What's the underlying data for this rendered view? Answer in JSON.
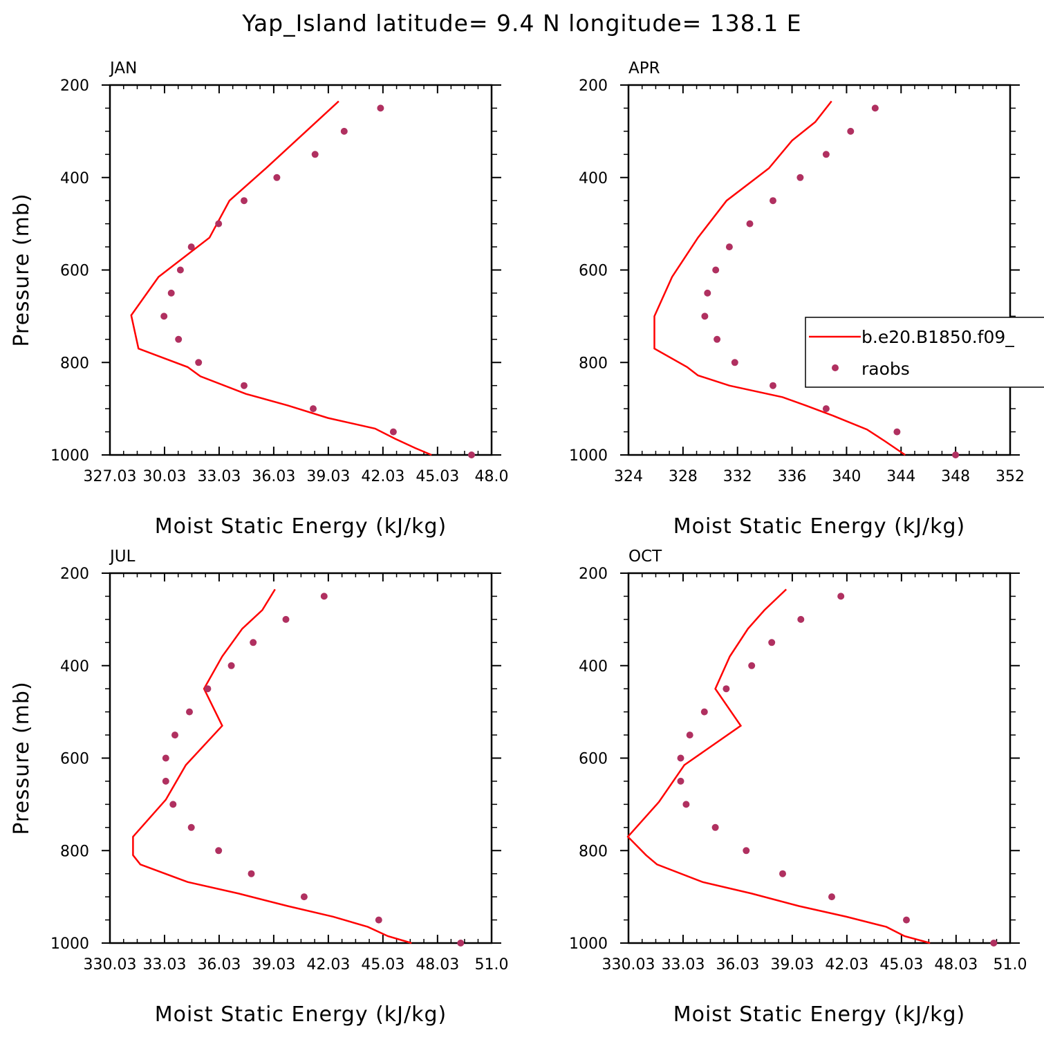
{
  "figure": {
    "title": "Yap_Island  latitude= 9.4 N longitude= 138.1 E"
  },
  "legend": {
    "model_label": "b.e20.B1850.f09_",
    "obs_label": "raobs",
    "model_color": "#ff0000",
    "obs_color": "#b03060"
  },
  "chart_data": [
    {
      "type": "line",
      "title": "JAN",
      "xlabel": "Moist Static Energy (kJ/kg)",
      "ylabel": "Pressure (mb)",
      "xlim": [
        327.03,
        348.0
      ],
      "ylim": [
        1000,
        200
      ],
      "x_ticks": [
        327.03,
        330.03,
        333.03,
        336.03,
        339.03,
        342.03,
        345.03,
        348.0
      ],
      "x_tick_labels": [
        "327.03",
        "30.03",
        "33.03",
        "36.03",
        "39.03",
        "42.03",
        "45.03",
        "48.0"
      ],
      "y_ticks": [
        200,
        400,
        600,
        800,
        1000
      ],
      "y_tick_labels": [
        "200",
        "400",
        "600",
        "800",
        "1000"
      ],
      "series": [
        {
          "name": "b.e20.B1850.f09_",
          "kind": "line",
          "points": [
            [
              344.7,
              1000
            ],
            [
              343.8,
              985
            ],
            [
              342.7,
              965
            ],
            [
              341.6,
              943
            ],
            [
              339.0,
              920
            ],
            [
              336.8,
              893
            ],
            [
              334.5,
              868
            ],
            [
              332.0,
              830
            ],
            [
              331.3,
              810
            ],
            [
              328.6,
              770
            ],
            [
              328.2,
              698
            ],
            [
              329.7,
              615
            ],
            [
              332.5,
              530
            ],
            [
              333.6,
              450
            ],
            [
              335.6,
              380
            ],
            [
              339.6,
              235
            ]
          ]
        },
        {
          "name": "raobs",
          "kind": "scatter",
          "points": [
            [
              346.9,
              1000
            ],
            [
              342.6,
              950
            ],
            [
              338.2,
              900
            ],
            [
              334.4,
              850
            ],
            [
              331.9,
              800
            ],
            [
              330.8,
              750
            ],
            [
              330.0,
              700
            ],
            [
              330.4,
              650
            ],
            [
              330.9,
              600
            ],
            [
              331.5,
              550
            ],
            [
              333.0,
              500
            ],
            [
              334.4,
              450
            ],
            [
              336.2,
              400
            ],
            [
              338.3,
              350
            ],
            [
              339.9,
              300
            ],
            [
              341.9,
              250
            ]
          ]
        }
      ]
    },
    {
      "type": "line",
      "title": "APR",
      "xlabel": "Moist Static Energy (kJ/kg)",
      "ylabel": "",
      "xlim": [
        324,
        352
      ],
      "ylim": [
        1000,
        200
      ],
      "x_ticks": [
        324,
        328,
        332,
        336,
        340,
        344,
        348,
        352
      ],
      "x_tick_labels": [
        "324",
        "328",
        "332",
        "336",
        "340",
        "344",
        "348",
        "352"
      ],
      "y_ticks": [
        200,
        400,
        600,
        800,
        1000
      ],
      "y_tick_labels": [
        "200",
        "400",
        "600",
        "800",
        "1000"
      ],
      "series": [
        {
          "name": "b.e20.B1850.f09_",
          "kind": "line",
          "points": [
            [
              344.3,
              1000
            ],
            [
              342.8,
              970
            ],
            [
              341.5,
              945
            ],
            [
              339.0,
              915
            ],
            [
              337.0,
              893
            ],
            [
              335.3,
              875
            ],
            [
              331.4,
              850
            ],
            [
              329.1,
              828
            ],
            [
              328.3,
              810
            ],
            [
              325.9,
              770
            ],
            [
              325.9,
              700
            ],
            [
              327.2,
              615
            ],
            [
              329.1,
              530
            ],
            [
              331.2,
              450
            ],
            [
              334.3,
              380
            ],
            [
              336.0,
              320
            ],
            [
              337.7,
              280
            ],
            [
              338.9,
              235
            ]
          ]
        },
        {
          "name": "raobs",
          "kind": "scatter",
          "points": [
            [
              348.0,
              1000
            ],
            [
              343.7,
              950
            ],
            [
              338.5,
              900
            ],
            [
              334.6,
              850
            ],
            [
              331.8,
              800
            ],
            [
              330.5,
              750
            ],
            [
              329.6,
              700
            ],
            [
              329.8,
              650
            ],
            [
              330.4,
              600
            ],
            [
              331.4,
              550
            ],
            [
              332.9,
              500
            ],
            [
              334.6,
              450
            ],
            [
              336.6,
              400
            ],
            [
              338.5,
              350
            ],
            [
              340.3,
              300
            ],
            [
              342.1,
              250
            ]
          ]
        }
      ]
    },
    {
      "type": "line",
      "title": "JUL",
      "xlabel": "Moist Static Energy (kJ/kg)",
      "ylabel": "Pressure (mb)",
      "xlim": [
        330.03,
        351.0
      ],
      "ylim": [
        1000,
        200
      ],
      "x_ticks": [
        330.03,
        333.03,
        336.03,
        339.03,
        342.03,
        345.03,
        348.03,
        351.0
      ],
      "x_tick_labels": [
        "330.03",
        "33.03",
        "36.03",
        "39.03",
        "42.03",
        "45.03",
        "48.03",
        "51.0"
      ],
      "y_ticks": [
        200,
        400,
        600,
        800,
        1000
      ],
      "y_tick_labels": [
        "200",
        "400",
        "600",
        "800",
        "1000"
      ],
      "series": [
        {
          "name": "b.e20.B1850.f09_",
          "kind": "line",
          "points": [
            [
              346.6,
              1000
            ],
            [
              345.3,
              985
            ],
            [
              344.2,
              965
            ],
            [
              342.3,
              943
            ],
            [
              339.8,
              920
            ],
            [
              337.1,
              893
            ],
            [
              334.3,
              868
            ],
            [
              331.7,
              830
            ],
            [
              331.3,
              810
            ],
            [
              331.3,
              770
            ],
            [
              333.1,
              690
            ],
            [
              334.2,
              615
            ],
            [
              336.2,
              530
            ],
            [
              335.2,
              450
            ],
            [
              336.2,
              380
            ],
            [
              337.3,
              320
            ],
            [
              338.4,
              280
            ],
            [
              339.1,
              235
            ]
          ]
        },
        {
          "name": "raobs",
          "kind": "scatter",
          "points": [
            [
              349.3,
              1000
            ],
            [
              344.8,
              950
            ],
            [
              340.7,
              900
            ],
            [
              337.8,
              850
            ],
            [
              336.0,
              800
            ],
            [
              334.5,
              750
            ],
            [
              333.5,
              700
            ],
            [
              333.1,
              650
            ],
            [
              333.1,
              600
            ],
            [
              333.6,
              550
            ],
            [
              334.4,
              500
            ],
            [
              335.4,
              450
            ],
            [
              336.7,
              400
            ],
            [
              337.9,
              350
            ],
            [
              339.7,
              300
            ],
            [
              341.8,
              250
            ]
          ]
        }
      ]
    },
    {
      "type": "line",
      "title": "OCT",
      "xlabel": "Moist Static Energy (kJ/kg)",
      "ylabel": "",
      "xlim": [
        330.03,
        351.0
      ],
      "ylim": [
        1000,
        200
      ],
      "x_ticks": [
        330.03,
        333.03,
        336.03,
        339.03,
        342.03,
        345.03,
        348.03,
        351.0
      ],
      "x_tick_labels": [
        "330.03",
        "33.03",
        "36.03",
        "39.03",
        "42.03",
        "45.03",
        "48.03",
        "51.0"
      ],
      "y_ticks": [
        200,
        400,
        600,
        800,
        1000
      ],
      "y_tick_labels": [
        "200",
        "400",
        "600",
        "800",
        "1000"
      ],
      "series": [
        {
          "name": "b.e20.B1850.f09_",
          "kind": "line",
          "points": [
            [
              346.6,
              1000
            ],
            [
              345.2,
              985
            ],
            [
              344.2,
              965
            ],
            [
              342.0,
              943
            ],
            [
              339.4,
              920
            ],
            [
              336.8,
              893
            ],
            [
              334.1,
              868
            ],
            [
              331.6,
              830
            ],
            [
              331.0,
              810
            ],
            [
              330.0,
              770
            ],
            [
              331.7,
              695
            ],
            [
              333.1,
              615
            ],
            [
              336.2,
              530
            ],
            [
              334.8,
              450
            ],
            [
              335.6,
              380
            ],
            [
              336.6,
              320
            ],
            [
              337.5,
              280
            ],
            [
              338.7,
              235
            ]
          ]
        },
        {
          "name": "raobs",
          "kind": "scatter",
          "points": [
            [
              350.1,
              1000
            ],
            [
              345.3,
              950
            ],
            [
              341.2,
              900
            ],
            [
              338.5,
              850
            ],
            [
              336.5,
              800
            ],
            [
              334.8,
              750
            ],
            [
              333.2,
              700
            ],
            [
              332.9,
              650
            ],
            [
              332.9,
              600
            ],
            [
              333.4,
              550
            ],
            [
              334.2,
              500
            ],
            [
              335.4,
              450
            ],
            [
              336.8,
              400
            ],
            [
              337.9,
              350
            ],
            [
              339.5,
              300
            ],
            [
              341.7,
              250
            ]
          ]
        }
      ]
    }
  ]
}
